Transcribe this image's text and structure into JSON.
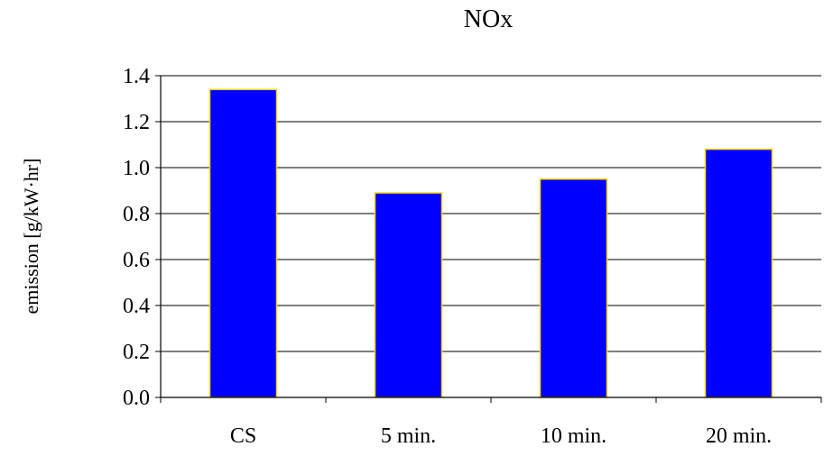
{
  "chart_data": {
    "type": "bar",
    "title": "NOx",
    "xlabel": "",
    "ylabel": "emission  [g/kW·hr]",
    "categories": [
      "CS",
      "5 min.",
      "10 min.",
      "20 min."
    ],
    "values": [
      1.34,
      0.89,
      0.95,
      1.08
    ],
    "ylim": [
      0,
      1.4
    ],
    "yticks": [
      "0.0",
      "0.2",
      "0.4",
      "0.6",
      "0.8",
      "1.0",
      "1.2",
      "1.4"
    ],
    "grid": true,
    "legend": "none",
    "colors": {
      "bar_fill": "#0000ff",
      "bar_edge": "#ffd700",
      "grid": "#000000",
      "axis": "#000000"
    }
  }
}
